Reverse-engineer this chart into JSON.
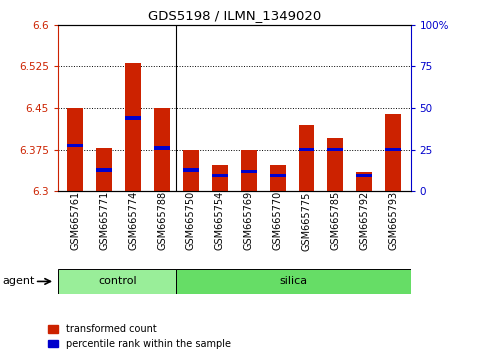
{
  "title": "GDS5198 / ILMN_1349020",
  "samples": [
    "GSM665761",
    "GSM665771",
    "GSM665774",
    "GSM665788",
    "GSM665750",
    "GSM665754",
    "GSM665769",
    "GSM665770",
    "GSM665775",
    "GSM665785",
    "GSM665792",
    "GSM665793"
  ],
  "groups": [
    "control",
    "control",
    "control",
    "control",
    "silica",
    "silica",
    "silica",
    "silica",
    "silica",
    "silica",
    "silica",
    "silica"
  ],
  "red_values": [
    6.45,
    6.378,
    6.531,
    6.45,
    6.375,
    6.348,
    6.375,
    6.348,
    6.42,
    6.395,
    6.335,
    6.44
  ],
  "blue_values": [
    6.382,
    6.338,
    6.432,
    6.378,
    6.338,
    6.328,
    6.335,
    6.328,
    6.375,
    6.375,
    6.328,
    6.375
  ],
  "ymin": 6.3,
  "ymax": 6.6,
  "yticks": [
    6.3,
    6.375,
    6.45,
    6.525,
    6.6
  ],
  "ytick_labels": [
    "6.3",
    "6.375",
    "6.45",
    "6.525",
    "6.6"
  ],
  "right_yticks": [
    0,
    25,
    50,
    75,
    100
  ],
  "right_ytick_labels": [
    "0",
    "25",
    "50",
    "75",
    "100%"
  ],
  "red_color": "#cc2200",
  "blue_color": "#0000cc",
  "control_color": "#99ee99",
  "silica_color": "#66dd66",
  "bar_width": 0.55,
  "n_control": 4,
  "agent_label": "agent",
  "legend_red": "transformed count",
  "legend_blue": "percentile rank within the sample"
}
